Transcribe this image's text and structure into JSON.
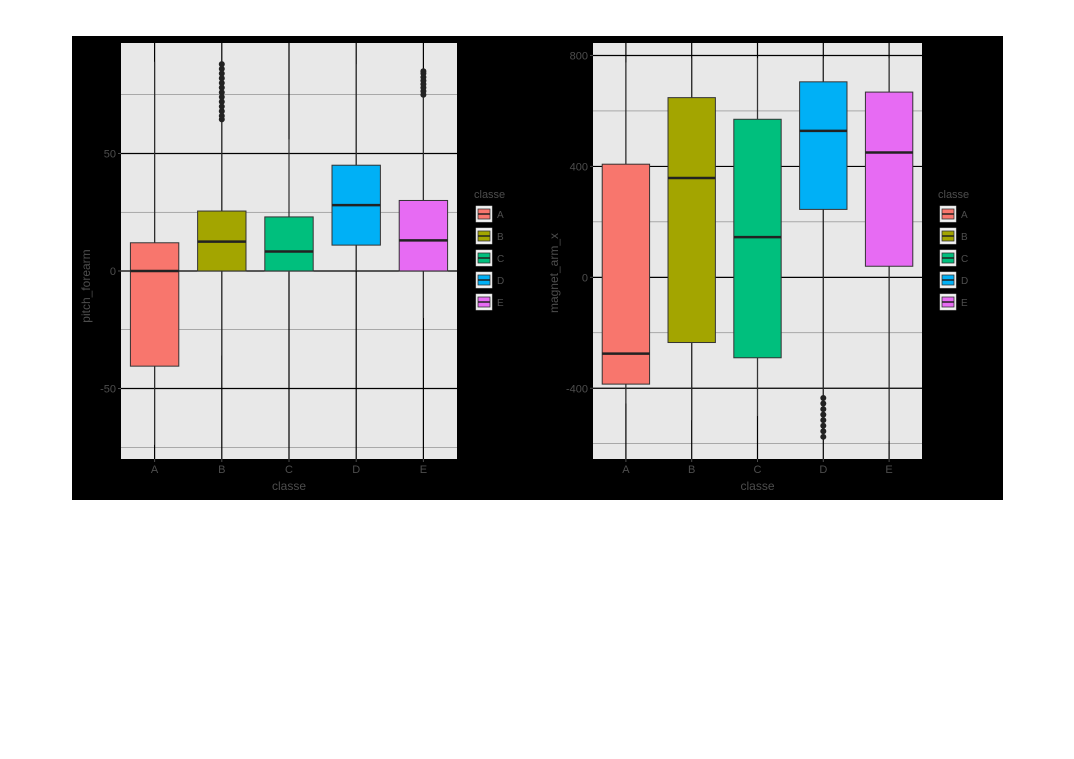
{
  "chart_data": [
    {
      "type": "boxplot",
      "xlabel": "classe",
      "ylabel": "pitch_forearm",
      "categories": [
        "A",
        "B",
        "C",
        "D",
        "E"
      ],
      "ylim": [
        -80,
        97
      ],
      "yticks": [
        -50,
        0,
        50
      ],
      "grid": true,
      "legend": {
        "title": "classe",
        "position": "right",
        "labels": [
          "A",
          "B",
          "C",
          "D",
          "E"
        ]
      },
      "boxes": [
        {
          "category": "A",
          "color": "#F8766D",
          "whisker_low": -74,
          "q1": -40.5,
          "median": 0,
          "q3": 12,
          "whisker_high": 89,
          "outliers": []
        },
        {
          "category": "B",
          "color": "#A3A500",
          "whisker_low": -36,
          "q1": 0,
          "median": 12.5,
          "q3": 25.5,
          "whisker_high": 64,
          "outliers": [
            64.5,
            66,
            68,
            70,
            72,
            74,
            76,
            78,
            80,
            82,
            84,
            86,
            88
          ]
        },
        {
          "category": "C",
          "color": "#00BF7D",
          "whisker_low": -0.5,
          "q1": 0,
          "median": 8.3,
          "q3": 23,
          "whisker_high": 56,
          "outliers": []
        },
        {
          "category": "D",
          "color": "#00B0F6",
          "whisker_low": 0,
          "q1": 11,
          "median": 28,
          "q3": 45,
          "whisker_high": 88,
          "outliers": []
        },
        {
          "category": "E",
          "color": "#E76BF3",
          "whisker_low": -20,
          "q1": 0,
          "median": 13,
          "q3": 30,
          "whisker_high": 74,
          "outliers": [
            75,
            76.5,
            78,
            79.5,
            81,
            82.5,
            84,
            85
          ]
        }
      ]
    },
    {
      "type": "boxplot",
      "xlabel": "classe",
      "ylabel": "magnet_arm_x",
      "categories": [
        "A",
        "B",
        "C",
        "D",
        "E"
      ],
      "ylim": [
        -655,
        845
      ],
      "yticks": [
        -400,
        0,
        400,
        800
      ],
      "grid": true,
      "legend": {
        "title": "classe",
        "position": "right",
        "labels": [
          "A",
          "B",
          "C",
          "D",
          "E"
        ]
      },
      "boxes": [
        {
          "category": "A",
          "color": "#F8766D",
          "whisker_low": -455,
          "q1": -385,
          "median": -275,
          "q3": 408,
          "whisker_high": 775,
          "outliers": []
        },
        {
          "category": "B",
          "color": "#A3A500",
          "whisker_low": -515,
          "q1": -235,
          "median": 358,
          "q3": 648,
          "whisker_high": 790,
          "outliers": []
        },
        {
          "category": "C",
          "color": "#00BF7D",
          "whisker_low": -500,
          "q1": -290,
          "median": 145,
          "q3": 570,
          "whisker_high": 790,
          "outliers": []
        },
        {
          "category": "D",
          "color": "#00B0F6",
          "whisker_low": -425,
          "q1": 245,
          "median": 528,
          "q3": 705,
          "whisker_high": 790,
          "outliers": [
            -435,
            -455,
            -475,
            -495,
            -515,
            -535,
            -555,
            -575
          ]
        },
        {
          "category": "E",
          "color": "#E76BF3",
          "whisker_low": -590,
          "q1": 40,
          "median": 450,
          "q3": 668,
          "whisker_high": 790,
          "outliers": []
        }
      ]
    }
  ]
}
